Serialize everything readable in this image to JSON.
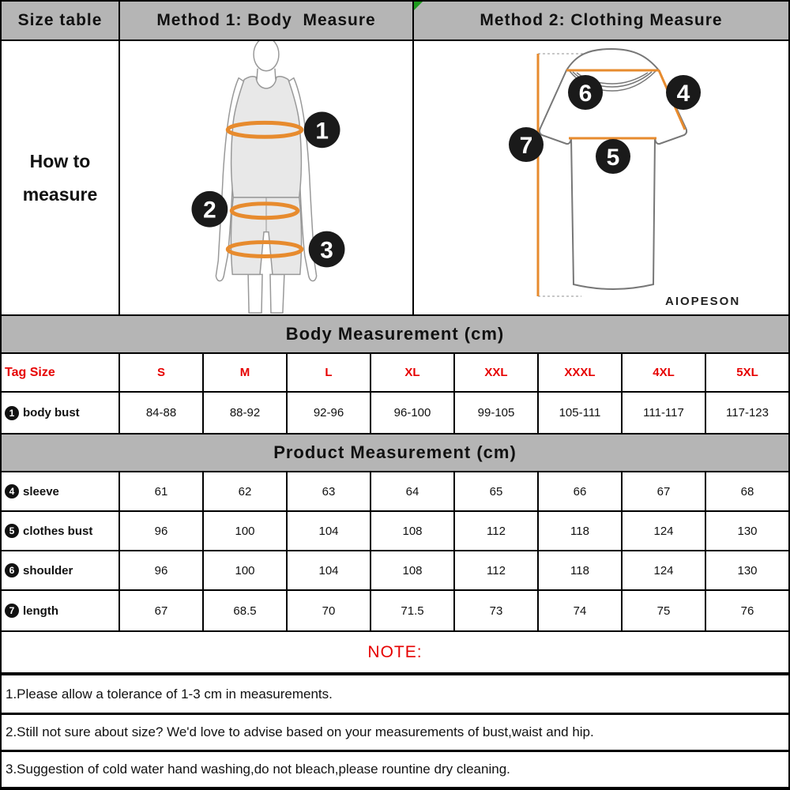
{
  "header": {
    "size_table": "Size table",
    "method1": "Method 1: Body  Measure",
    "method2": "Method 2: Clothing Measure"
  },
  "how_to_measure": {
    "line1": "How to",
    "line2": "measure"
  },
  "diagrams": {
    "brand": "AIOPESON",
    "markers": {
      "m1": "1",
      "m2": "2",
      "m3": "3",
      "m4": "4",
      "m5": "5",
      "m6": "6",
      "m7": "7"
    }
  },
  "body_measurement": {
    "title": "Body Measurement (cm)",
    "tag_size_label": "Tag Size",
    "sizes": [
      "S",
      "M",
      "L",
      "XL",
      "XXL",
      "XXXL",
      "4XL",
      "5XL"
    ],
    "rows": [
      {
        "marker": "1",
        "label": "body bust",
        "values": [
          "84-88",
          "88-92",
          "92-96",
          "96-100",
          "99-105",
          "105-111",
          "111-117",
          "117-123"
        ]
      }
    ]
  },
  "product_measurement": {
    "title": "Product Measurement (cm)",
    "rows": [
      {
        "marker": "4",
        "label": "sleeve",
        "values": [
          "61",
          "62",
          "63",
          "64",
          "65",
          "66",
          "67",
          "68"
        ]
      },
      {
        "marker": "5",
        "label": "clothes bust",
        "values": [
          "96",
          "100",
          "104",
          "108",
          "112",
          "118",
          "124",
          "130"
        ]
      },
      {
        "marker": "6",
        "label": "shoulder",
        "values": [
          "96",
          "100",
          "104",
          "108",
          "112",
          "118",
          "124",
          "130"
        ]
      },
      {
        "marker": "7",
        "label": "length",
        "values": [
          "67",
          "68.5",
          "70",
          "71.5",
          "73",
          "74",
          "75",
          "76"
        ]
      }
    ]
  },
  "note": {
    "title": "NOTE:",
    "items": [
      "1.Please allow a tolerance of 1-3 cm in measurements.",
      "2.Still not sure about size? We'd love to advise based on your measurements of bust,waist and hip.",
      "3.Suggestion of cold water hand washing,do not bleach,please rountine dry cleaning."
    ]
  },
  "colors": {
    "banner_gray": "#b5b5b5",
    "red": "#e60000",
    "orange": "#e78b2e",
    "border": "#000000",
    "green_marker": "#1e9b1e",
    "circle_black": "#1a1a1a"
  }
}
